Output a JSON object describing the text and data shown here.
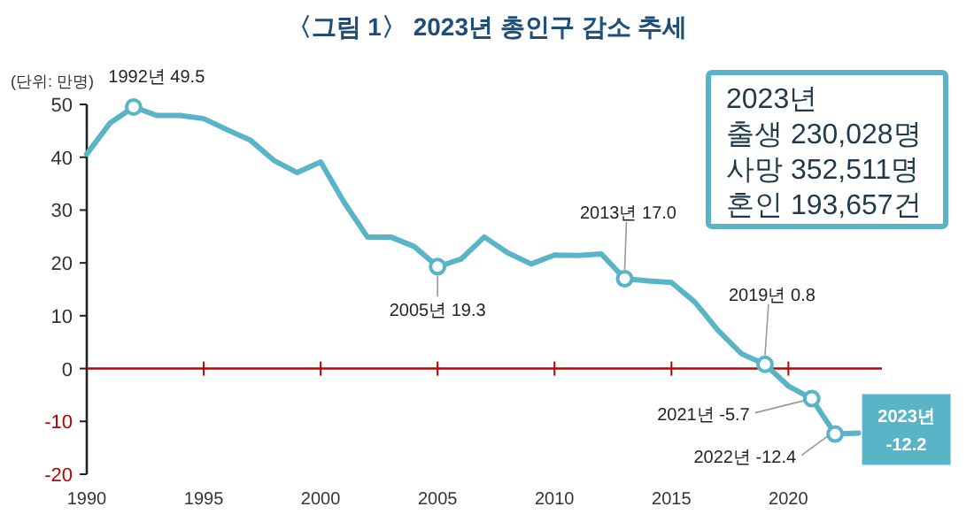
{
  "chart_data": {
    "type": "line",
    "title": "〈그림 1〉 2023년 총인구 감소 추세",
    "ylabel": "(단위: 만명)",
    "x": [
      1990,
      1991,
      1992,
      1993,
      1994,
      1995,
      1996,
      1997,
      1998,
      1999,
      2000,
      2001,
      2002,
      2003,
      2004,
      2005,
      2006,
      2007,
      2008,
      2009,
      2010,
      2011,
      2012,
      2013,
      2014,
      2015,
      2016,
      2017,
      2018,
      2019,
      2020,
      2021,
      2022,
      2023
    ],
    "series": [
      {
        "color": "#5ab4c8",
        "values": [
          40.6,
          46.5,
          49.5,
          47.9,
          47.9,
          47.3,
          45.2,
          43.2,
          39.4,
          37.1,
          39.1,
          31.5,
          24.9,
          24.9,
          23.1,
          19.3,
          20.7,
          24.9,
          21.9,
          19.8,
          21.5,
          21.4,
          21.7,
          17.0,
          16.6,
          16.3,
          12.6,
          7.2,
          2.8,
          0.8,
          -3.3,
          -5.7,
          -12.4,
          -12.2
        ]
      }
    ],
    "xlim": [
      1990,
      2024
    ],
    "xticks": [
      1990,
      1995,
      2000,
      2005,
      2010,
      2015,
      2020
    ],
    "ylim": [
      -20,
      50
    ],
    "yticks": [
      -20,
      -10,
      0,
      10,
      20,
      30,
      40,
      50
    ],
    "grid": false,
    "marker": "none",
    "line_style": "solid",
    "ref_lines": [
      {
        "axis": "y",
        "value": 0,
        "color": "#c00000"
      }
    ],
    "annotations": [
      {
        "text": "1992년 49.5",
        "x": 1992,
        "y": 49.5
      },
      {
        "text": "2005년 19.3",
        "x": 2005,
        "y": 19.3
      },
      {
        "text": "2013년 17.0",
        "x": 2013,
        "y": 17.0
      },
      {
        "text": "2019년 0.8",
        "x": 2019,
        "y": 0.8
      },
      {
        "text": "2021년 -5.7",
        "x": 2021,
        "y": -5.7
      },
      {
        "text": "2022년 -12.4",
        "x": 2022,
        "y": -12.4
      },
      {
        "text": "2023년\n-12.2",
        "x": 2023,
        "y": -12.2
      },
      "2023년\n출생 230,028명\n사망 352,511명\n혼인 193,657건"
    ]
  }
}
